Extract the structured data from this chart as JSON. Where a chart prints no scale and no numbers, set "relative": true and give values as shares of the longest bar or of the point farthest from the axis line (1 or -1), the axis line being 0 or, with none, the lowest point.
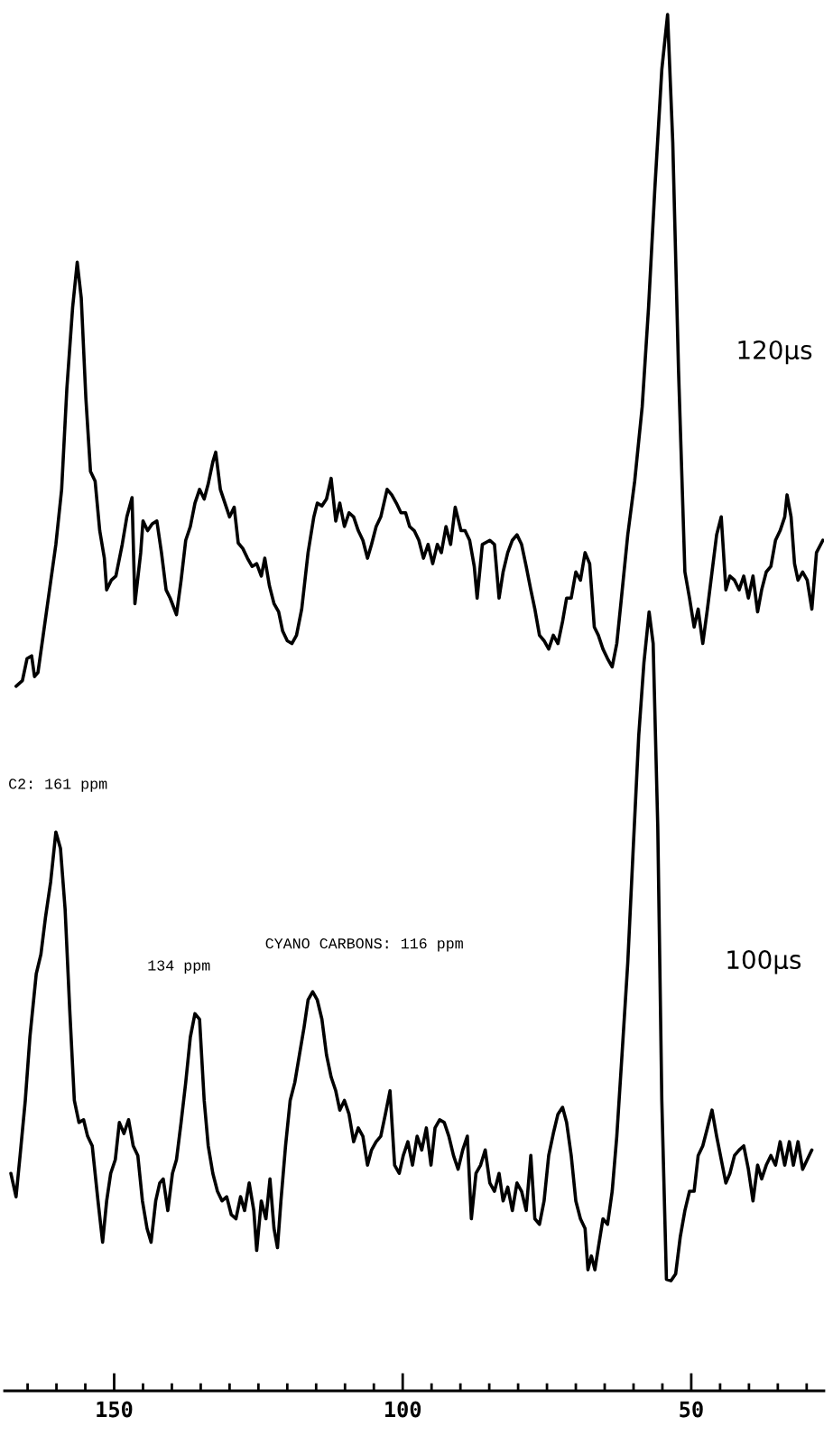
{
  "chart_data": {
    "type": "line",
    "relative": true,
    "xlim": [
      169,
      27
    ],
    "tick_labels": "x",
    "line_style": "solid",
    "marker": "none",
    "xticks": [
      {
        "value": 165,
        "label": null
      },
      {
        "value": 160,
        "label": null
      },
      {
        "value": 155,
        "label": null
      },
      150,
      {
        "value": 145,
        "label": null
      },
      {
        "value": 140,
        "label": null
      },
      {
        "value": 135,
        "label": null
      },
      {
        "value": 130,
        "label": null
      },
      {
        "value": 125,
        "label": null
      },
      {
        "value": 120,
        "label": null
      },
      {
        "value": 115,
        "label": null
      },
      {
        "value": 110,
        "label": null
      },
      {
        "value": 105,
        "label": null
      },
      100,
      {
        "value": 95,
        "label": null
      },
      {
        "value": 90,
        "label": null
      },
      {
        "value": 85,
        "label": null
      },
      {
        "value": 80,
        "label": null
      },
      {
        "value": 75,
        "label": null
      },
      {
        "value": 70,
        "label": null
      },
      {
        "value": 65,
        "label": null
      },
      {
        "value": 60,
        "label": null
      },
      {
        "value": 55,
        "label": null
      },
      50,
      {
        "value": 45,
        "label": null
      },
      {
        "value": 40,
        "label": null
      },
      {
        "value": 35,
        "label": null
      },
      {
        "value": 30,
        "label": null
      }
    ],
    "series": [
      {
        "name": "120μs",
        "color": "#000000",
        "x": [
          167.0,
          165.9,
          165.1,
          164.3,
          163.8,
          163.2,
          162.3,
          161.2,
          160.1,
          159.1,
          158.2,
          157.2,
          156.4,
          155.7,
          154.9,
          154.1,
          153.3,
          152.5,
          151.7,
          151.3,
          150.5,
          149.7,
          148.6,
          147.8,
          146.9,
          146.4,
          145.4,
          145.0,
          144.2,
          143.4,
          142.6,
          141.8,
          141.0,
          140.3,
          139.2,
          138.4,
          137.6,
          136.8,
          136.0,
          135.2,
          134.4,
          133.7,
          132.9,
          132.4,
          131.6,
          130.8,
          130.0,
          129.2,
          128.5,
          127.7,
          126.9,
          126.1,
          125.3,
          124.5,
          123.9,
          123.1,
          122.3,
          121.5,
          120.8,
          120.0,
          119.2,
          118.4,
          117.5,
          116.4,
          115.4,
          114.8,
          114.0,
          113.2,
          112.4,
          111.6,
          110.9,
          110.1,
          109.3,
          108.5,
          107.7,
          106.9,
          106.1,
          105.4,
          104.6,
          103.8,
          102.7,
          101.9,
          101.1,
          100.3,
          99.5,
          98.8,
          98.0,
          97.2,
          96.4,
          95.6,
          94.8,
          94.0,
          93.3,
          92.5,
          91.7,
          90.9,
          89.9,
          89.2,
          88.4,
          87.6,
          87.1,
          86.2,
          84.9,
          84.1,
          83.3,
          82.6,
          81.8,
          81.0,
          80.2,
          79.4,
          78.6,
          77.8,
          77.1,
          76.3,
          75.5,
          74.7,
          73.9,
          73.1,
          72.3,
          71.6,
          70.8,
          70.0,
          69.2,
          68.4,
          67.6,
          66.8,
          66.1,
          65.3,
          64.5,
          63.7,
          62.9,
          62.1,
          61.0,
          59.8,
          58.5,
          57.4,
          56.3,
          55.1,
          54.1,
          53.2,
          52.2,
          51.1,
          50.3,
          49.5,
          48.8,
          48.0,
          47.2,
          46.4,
          45.6,
          44.8,
          44.0,
          43.3,
          42.5,
          41.7,
          40.9,
          40.1,
          39.3,
          38.5,
          37.8,
          37.0,
          36.2,
          35.4,
          34.6,
          33.8,
          33.4,
          32.7,
          32.1,
          31.5,
          30.7,
          29.9,
          29.1,
          28.3,
          27.2
        ],
        "values": [
          0.512,
          0.516,
          0.532,
          0.534,
          0.519,
          0.522,
          0.549,
          0.582,
          0.615,
          0.655,
          0.728,
          0.787,
          0.82,
          0.794,
          0.721,
          0.668,
          0.661,
          0.625,
          0.605,
          0.582,
          0.589,
          0.592,
          0.615,
          0.635,
          0.649,
          0.572,
          0.609,
          0.632,
          0.625,
          0.63,
          0.632,
          0.609,
          0.582,
          0.576,
          0.564,
          0.589,
          0.618,
          0.628,
          0.645,
          0.655,
          0.648,
          0.659,
          0.675,
          0.682,
          0.655,
          0.645,
          0.635,
          0.642,
          0.616,
          0.612,
          0.605,
          0.599,
          0.601,
          0.592,
          0.605,
          0.585,
          0.572,
          0.566,
          0.552,
          0.545,
          0.543,
          0.549,
          0.568,
          0.609,
          0.635,
          0.645,
          0.643,
          0.648,
          0.663,
          0.632,
          0.645,
          0.628,
          0.638,
          0.635,
          0.625,
          0.618,
          0.605,
          0.615,
          0.628,
          0.635,
          0.655,
          0.651,
          0.645,
          0.638,
          0.638,
          0.628,
          0.625,
          0.618,
          0.605,
          0.615,
          0.601,
          0.615,
          0.609,
          0.628,
          0.615,
          0.642,
          0.625,
          0.625,
          0.618,
          0.599,
          0.576,
          0.615,
          0.618,
          0.615,
          0.576,
          0.595,
          0.609,
          0.618,
          0.622,
          0.615,
          0.599,
          0.582,
          0.568,
          0.549,
          0.545,
          0.539,
          0.549,
          0.543,
          0.559,
          0.576,
          0.576,
          0.595,
          0.589,
          0.609,
          0.601,
          0.555,
          0.549,
          0.539,
          0.532,
          0.526,
          0.543,
          0.576,
          0.622,
          0.661,
          0.715,
          0.787,
          0.874,
          0.96,
          1,
          0.907,
          0.741,
          0.595,
          0.576,
          0.555,
          0.568,
          0.543,
          0.568,
          0.595,
          0.622,
          0.635,
          0.582,
          0.592,
          0.589,
          0.582,
          0.592,
          0.576,
          0.592,
          0.566,
          0.582,
          0.595,
          0.599,
          0.618,
          0.625,
          0.635,
          0.651,
          0.635,
          0.601,
          0.589,
          0.595,
          0.589,
          0.568,
          0.609,
          0.618
        ]
      },
      {
        "name": "100μs",
        "color": "#000000",
        "x": [
          167.9,
          167.0,
          166.3,
          165.4,
          164.6,
          163.5,
          162.7,
          161.9,
          161.0,
          160.1,
          159.3,
          158.5,
          157.7,
          156.9,
          156.1,
          155.3,
          154.6,
          153.8,
          152.8,
          152.0,
          151.3,
          150.6,
          149.8,
          149.1,
          148.3,
          147.5,
          146.7,
          145.9,
          145.1,
          144.3,
          143.6,
          142.8,
          142.1,
          141.5,
          140.7,
          139.9,
          139.2,
          138.4,
          137.6,
          136.8,
          136.0,
          135.2,
          134.4,
          133.7,
          132.9,
          132.1,
          131.3,
          130.5,
          129.7,
          128.9,
          128.1,
          127.4,
          126.6,
          125.8,
          125.3,
          124.5,
          123.7,
          123.0,
          122.3,
          121.7,
          121.1,
          120.3,
          119.5,
          118.7,
          117.9,
          117.1,
          116.4,
          115.6,
          114.8,
          114.0,
          113.2,
          112.4,
          111.6,
          110.9,
          110.1,
          109.3,
          108.5,
          107.7,
          106.9,
          106.1,
          105.4,
          104.6,
          103.8,
          103.0,
          102.2,
          101.4,
          100.6,
          99.9,
          99.1,
          98.3,
          97.5,
          96.7,
          95.9,
          95.1,
          94.4,
          93.6,
          92.8,
          92.0,
          91.2,
          90.4,
          89.6,
          88.8,
          88.1,
          87.3,
          86.5,
          85.7,
          84.9,
          84.1,
          83.3,
          82.6,
          81.8,
          81.0,
          80.2,
          79.4,
          78.6,
          77.8,
          77.1,
          76.3,
          75.5,
          74.7,
          73.9,
          73.1,
          72.3,
          71.6,
          70.8,
          70.0,
          69.2,
          68.4,
          67.9,
          67.3,
          66.7,
          66.1,
          65.3,
          64.5,
          63.7,
          62.9,
          62.0,
          61.0,
          60.1,
          59.1,
          58.2,
          57.3,
          56.6,
          55.8,
          55.1,
          54.3,
          53.5,
          52.7,
          51.9,
          51.1,
          50.3,
          49.5,
          48.8,
          48.0,
          47.2,
          46.4,
          45.6,
          44.8,
          44.0,
          43.3,
          42.5,
          41.7,
          40.9,
          40.1,
          39.3,
          38.5,
          37.8,
          37.0,
          36.2,
          35.4,
          34.6,
          33.8,
          33.0,
          32.3,
          31.5,
          30.7,
          29.9,
          29.1
        ],
        "values": [
          0.158,
          0.141,
          0.171,
          0.211,
          0.257,
          0.303,
          0.317,
          0.344,
          0.37,
          0.406,
          0.394,
          0.35,
          0.277,
          0.211,
          0.195,
          0.197,
          0.185,
          0.178,
          0.138,
          0.108,
          0.138,
          0.158,
          0.168,
          0.195,
          0.187,
          0.197,
          0.178,
          0.171,
          0.138,
          0.118,
          0.108,
          0.138,
          0.151,
          0.154,
          0.131,
          0.158,
          0.168,
          0.195,
          0.224,
          0.257,
          0.274,
          0.27,
          0.211,
          0.178,
          0.158,
          0.145,
          0.138,
          0.141,
          0.128,
          0.125,
          0.141,
          0.131,
          0.151,
          0.131,
          0.102,
          0.138,
          0.125,
          0.154,
          0.118,
          0.104,
          0.138,
          0.178,
          0.211,
          0.224,
          0.244,
          0.264,
          0.284,
          0.29,
          0.284,
          0.27,
          0.244,
          0.228,
          0.218,
          0.204,
          0.211,
          0.201,
          0.181,
          0.191,
          0.185,
          0.164,
          0.175,
          0.181,
          0.185,
          0.201,
          0.218,
          0.164,
          0.158,
          0.171,
          0.181,
          0.164,
          0.185,
          0.175,
          0.191,
          0.164,
          0.191,
          0.197,
          0.195,
          0.185,
          0.171,
          0.161,
          0.175,
          0.185,
          0.125,
          0.158,
          0.164,
          0.175,
          0.151,
          0.145,
          0.158,
          0.138,
          0.148,
          0.131,
          0.151,
          0.145,
          0.131,
          0.171,
          0.125,
          0.121,
          0.138,
          0.171,
          0.187,
          0.201,
          0.206,
          0.195,
          0.171,
          0.138,
          0.125,
          0.118,
          0.088,
          0.098,
          0.088,
          0.104,
          0.125,
          0.121,
          0.145,
          0.185,
          0.244,
          0.311,
          0.39,
          0.476,
          0.529,
          0.566,
          0.543,
          0.41,
          0.211,
          0.081,
          0.08,
          0.085,
          0.112,
          0.131,
          0.145,
          0.145,
          0.171,
          0.178,
          0.191,
          0.204,
          0.185,
          0.168,
          0.151,
          0.158,
          0.171,
          0.175,
          0.178,
          0.161,
          0.138,
          0.164,
          0.154,
          0.164,
          0.171,
          0.164,
          0.181,
          0.164,
          0.181,
          0.164,
          0.181,
          0.161,
          0.168,
          0.175
        ]
      }
    ],
    "annotations": [
      {
        "text": "C2: 161 ppm",
        "x": 160.1,
        "y": 0.406
      },
      {
        "text": "134 ppm",
        "x": 136.0,
        "y": 0.274
      },
      {
        "text": "CYANO CARBONS: 116 ppm",
        "x": 115.6,
        "y": 0.29
      }
    ]
  }
}
